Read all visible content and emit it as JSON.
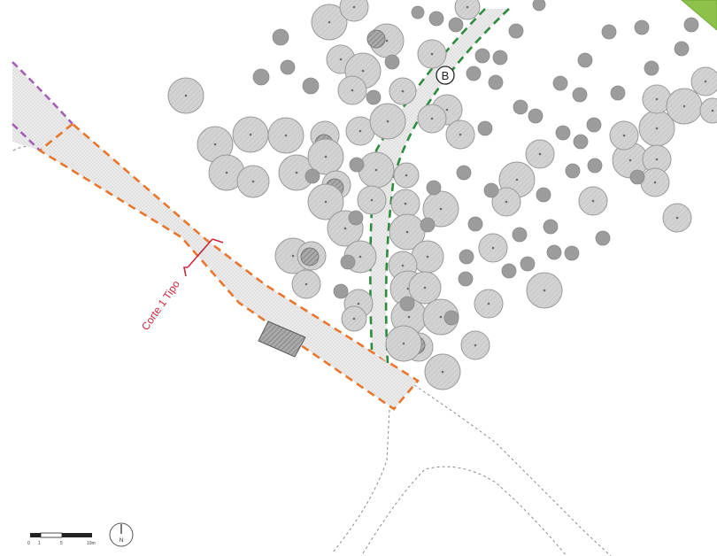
{
  "section_label": "Corte 1 Tipo",
  "path_marker": "B",
  "north_arrow": {
    "letter": "N",
    "icon": "north-arrow-icon"
  },
  "scale_bar": {
    "labels": [
      "0",
      "1",
      "5",
      "10m"
    ]
  },
  "legend_colors": {
    "main_path_outline": "#e8762c",
    "secondary_path_outline": "#2e8b3e",
    "boundary_outline": "#a45bb5",
    "section_line": "#c8283c",
    "tree_fill": "#cfcfcf",
    "corner_green": "#8cc24a"
  }
}
